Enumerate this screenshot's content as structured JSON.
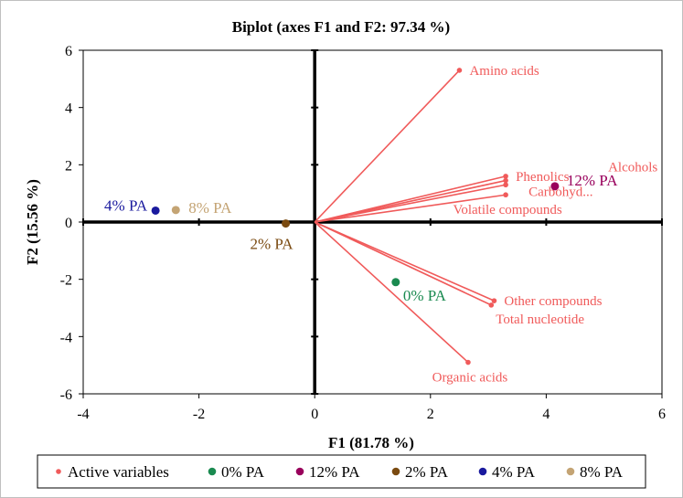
{
  "chart_data": {
    "type": "scatter",
    "title": "Biplot (axes F1 and F2: 97.34 %)",
    "xlabel": "F1 (81.78 %)",
    "ylabel": "F2 (15.56 %)",
    "xlim": [
      -4,
      6
    ],
    "ylim": [
      -6,
      6
    ],
    "xticks": [
      "-4",
      "-2",
      "0",
      "2",
      "4",
      "6"
    ],
    "yticks": [
      "-6",
      "-4",
      "-2",
      "0",
      "2",
      "4",
      "6"
    ],
    "grid": false,
    "legend_position": "bottom",
    "variables": {
      "name": "Active variables",
      "color": "#f05a5a",
      "items": [
        {
          "label": "Amino  acids",
          "x": 2.5,
          "y": 5.3,
          "label_anchor": "right"
        },
        {
          "label": "Phenolics",
          "x": 3.3,
          "y": 1.6,
          "label_anchor": "right"
        },
        {
          "label": "Alcohols",
          "x": 3.3,
          "y": 1.45,
          "label_anchor": "far"
        },
        {
          "label": "Carbohyd...",
          "x": 3.3,
          "y": 1.3,
          "label_anchor": "right-below"
        },
        {
          "label": "Volatile  compounds",
          "x": 3.3,
          "y": 0.95,
          "label_anchor": "below"
        },
        {
          "label": "Other compounds",
          "x": 3.1,
          "y": -2.75,
          "label_anchor": "right"
        },
        {
          "label": "Total nucleotide",
          "x": 3.05,
          "y": -2.9,
          "label_anchor": "right-below"
        },
        {
          "label": "Organic acids",
          "x": 2.65,
          "y": -4.9,
          "label_anchor": "below"
        }
      ]
    },
    "observations": [
      {
        "label": "0% PA",
        "x": 1.4,
        "y": -2.1,
        "color": "#1a8a50"
      },
      {
        "label": "12% PA",
        "x": 4.15,
        "y": 1.25,
        "color": "#99005c"
      },
      {
        "label": "2% PA",
        "x": -0.5,
        "y": -0.05,
        "color": "#7a4a10"
      },
      {
        "label": "4% PA",
        "x": -2.75,
        "y": 0.4,
        "color": "#1a1a9e"
      },
      {
        "label": "8% PA",
        "x": -2.4,
        "y": 0.42,
        "color": "#c4a474"
      }
    ],
    "legend": [
      "Active variables",
      "0% PA",
      "12% PA",
      "2% PA",
      "4% PA",
      "8% PA"
    ]
  }
}
